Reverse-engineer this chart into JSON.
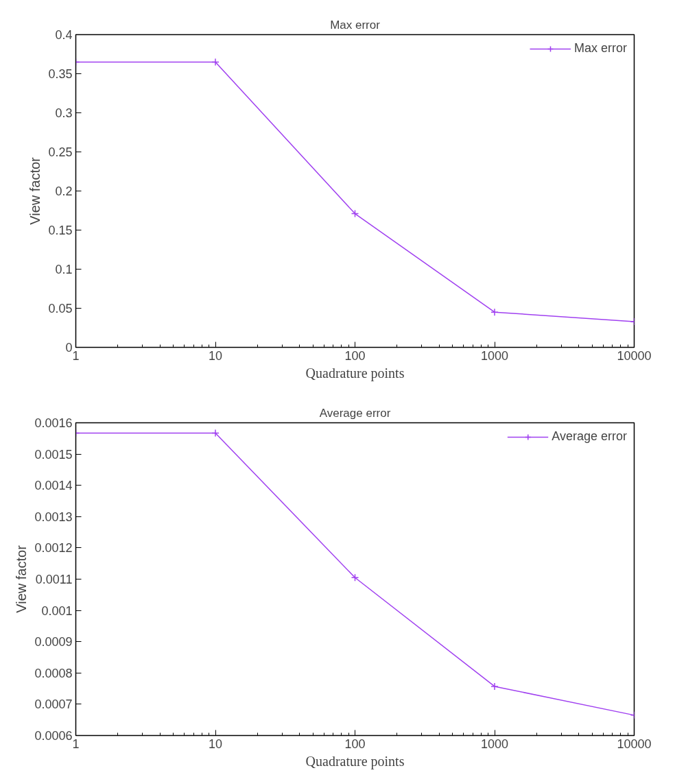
{
  "chart_data": [
    {
      "type": "line",
      "title": "Max error",
      "xlabel": "Quadrature points",
      "ylabel": "View factor",
      "log": "x",
      "x": [
        1,
        10,
        100,
        1000,
        10000
      ],
      "series": [
        {
          "name": "Max error",
          "color": "#a040f0",
          "values": [
            0.365,
            0.365,
            0.171,
            0.045,
            0.033
          ]
        }
      ],
      "xlim": [
        1,
        10000
      ],
      "xticks": [
        1,
        10,
        100,
        1000,
        10000
      ],
      "ylim": [
        0,
        0.4
      ],
      "yticks": [
        0,
        0.05,
        0.1,
        0.15,
        0.2,
        0.25,
        0.3,
        0.35,
        0.4
      ],
      "grid": false,
      "legend": "top right",
      "marker": "cross",
      "line_style": "solid"
    },
    {
      "type": "line",
      "title": "Average error",
      "xlabel": "Quadrature points",
      "ylabel": "View factor",
      "log": "x",
      "x": [
        1,
        10,
        100,
        1000,
        10000
      ],
      "series": [
        {
          "name": "Average error",
          "color": "#a040f0",
          "values": [
            0.001567,
            0.001567,
            0.001105,
            0.000757,
            0.000665
          ]
        }
      ],
      "xlim": [
        1,
        10000
      ],
      "xticks": [
        1,
        10,
        100,
        1000,
        10000
      ],
      "ylim": [
        0.0006,
        0.0016
      ],
      "yticks": [
        0.0006,
        0.0007,
        0.0008,
        0.0009,
        0.001,
        0.0011,
        0.0012,
        0.0013,
        0.0014,
        0.0015,
        0.0016
      ],
      "grid": false,
      "legend": "top right",
      "marker": "cross",
      "line_style": "solid"
    }
  ]
}
